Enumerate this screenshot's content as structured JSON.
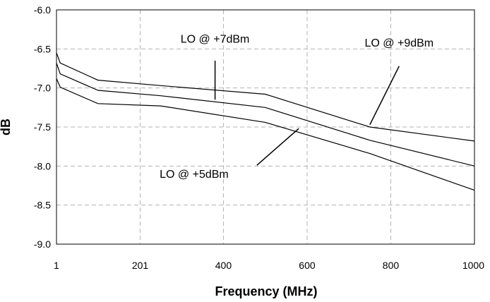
{
  "chart_data": {
    "type": "line",
    "title": "",
    "xlabel": "Frequency (MHz)",
    "ylabel": "dB",
    "xlim": [
      1,
      1000
    ],
    "ylim": [
      -9.0,
      -6.0
    ],
    "x_ticks": [
      1,
      201,
      400,
      600,
      800,
      1000
    ],
    "x_tick_labels": [
      "1",
      "201",
      "400",
      "600",
      "800",
      "1000"
    ],
    "y_ticks": [
      -6.0,
      -6.5,
      -7.0,
      -7.5,
      -8.0,
      -8.5,
      -9.0
    ],
    "y_tick_labels": [
      "-6.0",
      "-6.5",
      "-7.0",
      "-7.5",
      "-8.0",
      "-8.5",
      "-9.0"
    ],
    "grid": true,
    "series": [
      {
        "name": "LO @ +9dBm",
        "x": [
          1,
          10,
          100,
          250,
          500,
          750,
          1000
        ],
        "values": [
          -6.55,
          -6.68,
          -6.9,
          -6.97,
          -7.08,
          -7.5,
          -7.68
        ]
      },
      {
        "name": "LO @ +7dBm",
        "x": [
          1,
          10,
          100,
          250,
          500,
          750,
          1000
        ],
        "values": [
          -6.68,
          -6.82,
          -7.03,
          -7.1,
          -7.25,
          -7.67,
          -8.0
        ]
      },
      {
        "name": "LO @ +5dBm",
        "x": [
          1,
          10,
          100,
          250,
          500,
          750,
          1000
        ],
        "values": [
          -6.88,
          -6.99,
          -7.2,
          -7.23,
          -7.44,
          -7.84,
          -8.31
        ]
      }
    ],
    "annotations": [
      {
        "text": "LO @ +7dBm",
        "series": "LO @ +7dBm",
        "x": 380,
        "y": -6.42,
        "pointer": [
          [
            380,
            -6.65
          ],
          [
            380,
            -7.15
          ]
        ]
      },
      {
        "text": "LO @ +9dBm",
        "series": "LO @ +9dBm",
        "x": 820,
        "y": -6.47,
        "pointer": [
          [
            820,
            -6.72
          ],
          [
            750,
            -7.47
          ]
        ]
      },
      {
        "text": "LO @ +5dBm",
        "series": "LO @ +5dBm",
        "x": 330,
        "y": -8.15,
        "pointer": [
          [
            480,
            -7.99
          ],
          [
            580,
            -7.52
          ]
        ]
      }
    ]
  }
}
